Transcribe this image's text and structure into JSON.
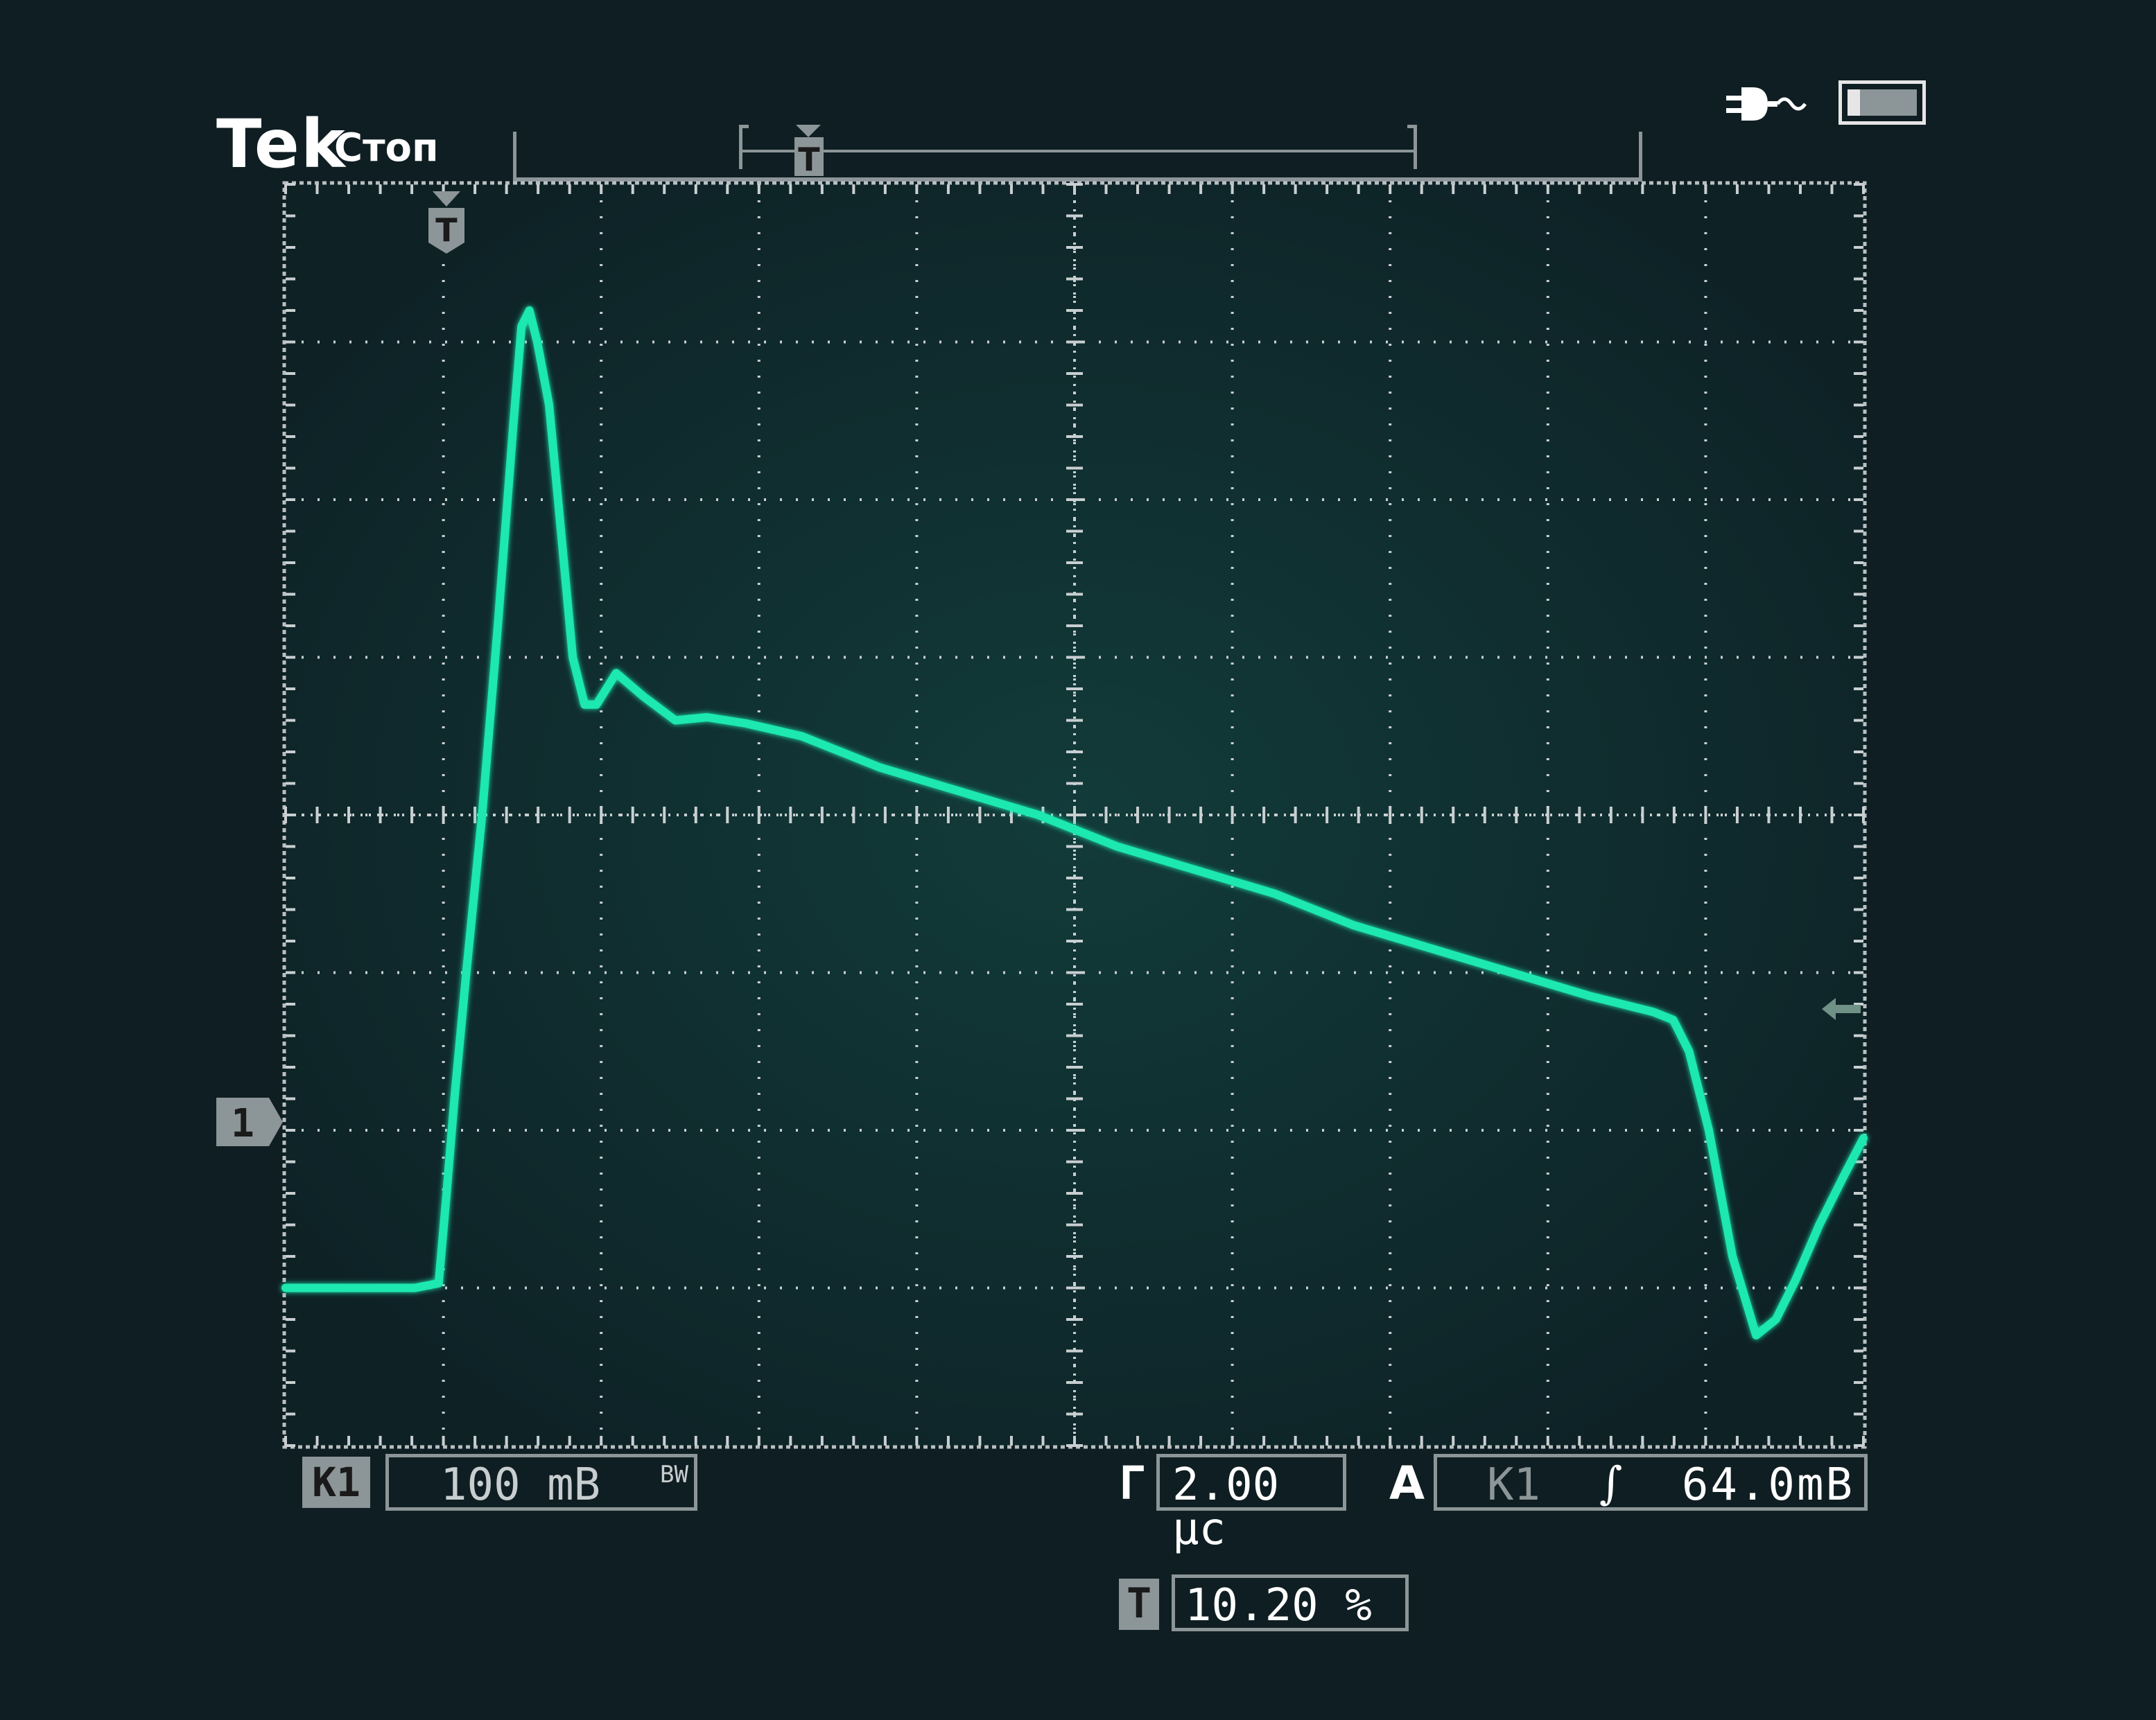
{
  "header": {
    "brand": "Tek",
    "acq_state": "Стоп",
    "record_trigger_marker": "T"
  },
  "status_icons": [
    "power-plug-icon",
    "battery-icon"
  ],
  "screen": {
    "divisions_x": 10,
    "divisions_y": 8,
    "trace_color": "#1fe8b0",
    "trigger_marker": "T",
    "channel_marker": "1"
  },
  "chart_data": {
    "type": "line",
    "x_unit": "µs",
    "y_unit": "mV",
    "x_per_div": 2.0,
    "y_per_div": 100,
    "xlim": [
      -2.04,
      17.96
    ],
    "ylim": [
      -100,
      700
    ],
    "series": [
      {
        "x": [
          -2.04,
          -1.2,
          -0.4,
          -0.1,
          0.0,
          0.1,
          0.25,
          0.45,
          0.65,
          0.85,
          0.95,
          1.05,
          1.15,
          1.3,
          1.45,
          1.6,
          1.75,
          1.9,
          2.15,
          2.5,
          2.9,
          3.3,
          3.8,
          4.5,
          5.5,
          6.5,
          7.5,
          8.5,
          9.5,
          10.5,
          11.5,
          12.5,
          13.5,
          14.5,
          15.3,
          15.55,
          15.75,
          16.0,
          16.3,
          16.6,
          16.85,
          17.1,
          17.4,
          17.7,
          17.96
        ],
        "y": [
          0,
          0,
          0,
          3,
          60,
          120,
          200,
          300,
          420,
          550,
          610,
          620,
          600,
          560,
          480,
          400,
          370,
          370,
          390,
          375,
          360,
          362,
          358,
          350,
          330,
          315,
          300,
          280,
          265,
          250,
          230,
          215,
          200,
          185,
          175,
          170,
          150,
          100,
          20,
          -30,
          -20,
          5,
          40,
          70,
          95
        ]
      }
    ]
  },
  "footer": {
    "channel_label": "К1",
    "volts_per_div": "100 mВ",
    "bw_limit": "BW",
    "timebase_label": "Г",
    "timebase": "2.00 µс",
    "trigger_label": "А",
    "trigger_source": "К1",
    "trigger_slope": "∫",
    "trigger_level": "64.0mВ",
    "position_label": "T",
    "position": "10.20 %"
  }
}
